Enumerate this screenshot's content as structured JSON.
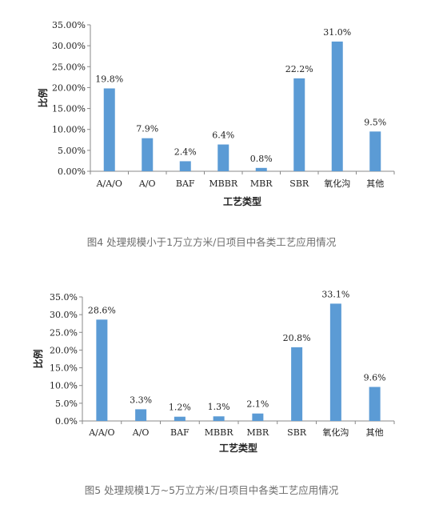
{
  "chart_data": [
    {
      "type": "bar",
      "categories": [
        "A/A/O",
        "A/O",
        "BAF",
        "MBBR",
        "MBR",
        "SBR",
        "氧化沟",
        "其他"
      ],
      "values": [
        19.8,
        7.9,
        2.4,
        6.4,
        0.8,
        22.2,
        31.0,
        9.5
      ],
      "data_labels": [
        "19.8%",
        "7.9%",
        "2.4%",
        "6.4%",
        "0.8%",
        "22.2%",
        "31.0%",
        "9.5%"
      ],
      "yticks": [
        "0.00%",
        "5.00%",
        "10.00%",
        "15.00%",
        "20.00%",
        "25.00%",
        "30.00%",
        "35.00%"
      ],
      "ylim": [
        0,
        35
      ],
      "ylabel": "比例",
      "xlabel": "工艺类型",
      "caption": "图4  处理规模小于1万立方米/日项目中各类工艺应用情况",
      "bar_color": "#5b9bd5",
      "grid": false,
      "legend": "none"
    },
    {
      "type": "bar",
      "categories": [
        "A/A/O",
        "A/O",
        "BAF",
        "MBBR",
        "MBR",
        "SBR",
        "氧化沟",
        "其他"
      ],
      "values": [
        28.6,
        3.3,
        1.2,
        1.3,
        2.1,
        20.8,
        33.1,
        9.6
      ],
      "data_labels": [
        "28.6%",
        "3.3%",
        "1.2%",
        "1.3%",
        "2.1%",
        "20.8%",
        "33.1%",
        "9.6%"
      ],
      "yticks": [
        "0.0%",
        "5.0%",
        "10.0%",
        "15.0%",
        "20.0%",
        "25.0%",
        "30.0%",
        "35.0%"
      ],
      "ylim": [
        0,
        35
      ],
      "ylabel": "比例",
      "xlabel": "工艺类型",
      "caption": "图5  处理规模1万~5万立方米/日项目中各类工艺应用情况",
      "bar_color": "#5b9bd5",
      "grid": false,
      "legend": "none"
    }
  ]
}
